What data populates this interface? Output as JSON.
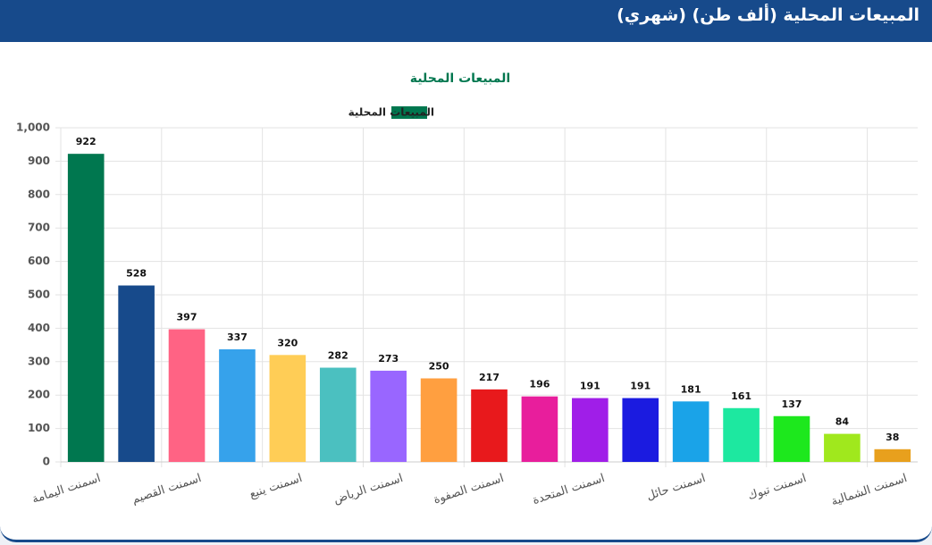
{
  "header": {
    "title": "المبيعات المحلية (ألف طن) (شهري)"
  },
  "chart_data": {
    "type": "bar",
    "title": "المبيعات المحلية",
    "categories": [
      "اسمنت اليمامة",
      null,
      "اسمنت القصيم",
      null,
      "اسمنت ينبع",
      null,
      "اسمنت الرياض",
      null,
      "اسمنت الصفوة",
      null,
      "اسمنت المتحدة",
      null,
      "اسمنت حائل",
      null,
      "اسمنت تبوك",
      null,
      "اسمنت الشمالية"
    ],
    "series": [
      {
        "name": "المبيعات المحلية",
        "color": "#00774f",
        "values": [
          922,
          528,
          397,
          337,
          320,
          282,
          273,
          250,
          217,
          196,
          191,
          191,
          181,
          161,
          137,
          84,
          38
        ],
        "colors": [
          "#00774f",
          "#174a8b",
          "#ff6384",
          "#36a2eb",
          "#ffcd56",
          "#4bc0c0",
          "#9966ff",
          "#ff9f40",
          "#e8191c",
          "#e81e9c",
          "#a01ee8",
          "#1b1be0",
          "#1aa3e8",
          "#1de8a0",
          "#1de81d",
          "#a0e81d",
          "#e8a01d"
        ]
      }
    ],
    "ylim": [
      0,
      1000
    ],
    "yticks": [
      0,
      100,
      200,
      300,
      400,
      500,
      600,
      700,
      800,
      900,
      {
        "value": 1000,
        "label": "1,000"
      }
    ],
    "grid": true,
    "legend": "top"
  }
}
